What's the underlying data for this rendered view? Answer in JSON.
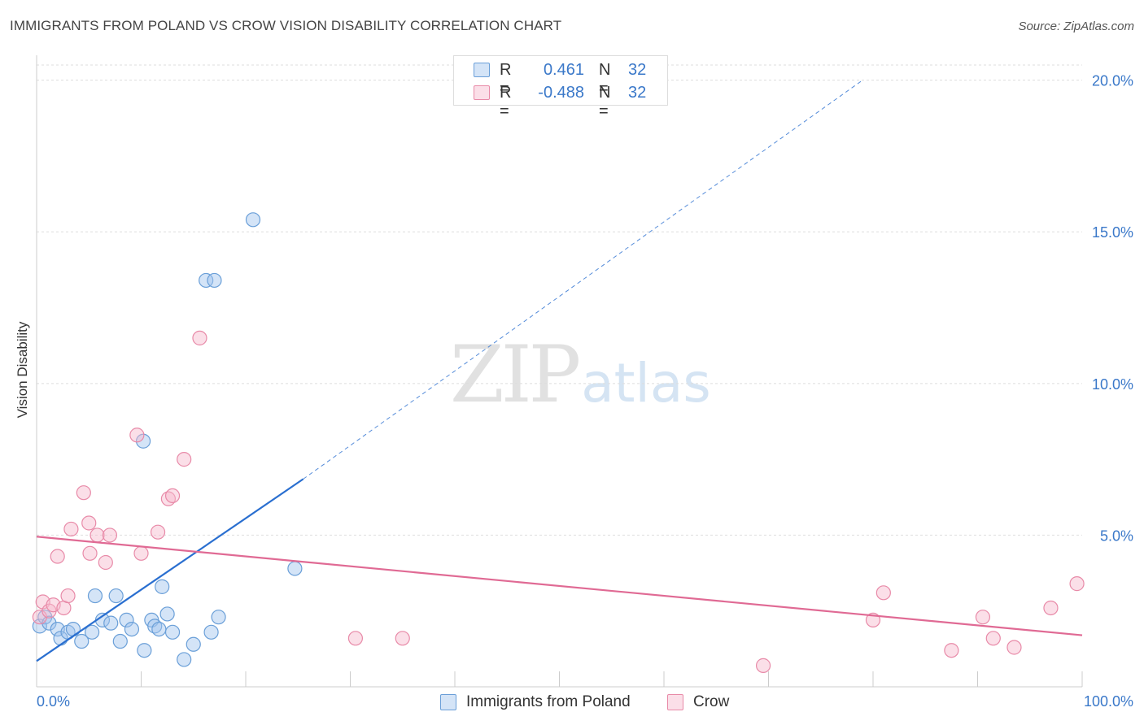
{
  "title": "IMMIGRANTS FROM POLAND VS CROW VISION DISABILITY CORRELATION CHART",
  "source": "Source: ZipAtlas.com",
  "watermark": {
    "part1": "ZIP",
    "part2": "atlas"
  },
  "colors": {
    "blue": "#6a9fd8",
    "blue_fill": "rgba(160,196,238,0.45)",
    "blue_line": "#2a6fd0",
    "pink": "#e88aa8",
    "pink_fill": "rgba(246,184,204,0.45)",
    "pink_line": "#e06a94",
    "tick_label": "#3a78c9",
    "grid": "#dddddd"
  },
  "legend_top": [
    {
      "r_label": "R =",
      "r_value": "0.461",
      "n_label": "N =",
      "n_value": "32"
    },
    {
      "r_label": "R =",
      "r_value": "-0.488",
      "n_label": "N =",
      "n_value": "32"
    }
  ],
  "legend_bottom": [
    "Immigrants from Poland",
    "Crow"
  ],
  "chart_data": {
    "type": "scatter",
    "title": "IMMIGRANTS FROM POLAND VS CROW VISION DISABILITY CORRELATION CHART",
    "xlabel": "",
    "ylabel": "Vision Disability",
    "xlim": [
      0,
      100
    ],
    "ylim": [
      0,
      20.5
    ],
    "x_tick_labels": [
      "0.0%",
      "100.0%"
    ],
    "y_ticks": [
      5,
      10,
      15,
      20
    ],
    "y_tick_labels": [
      "5.0%",
      "10.0%",
      "15.0%",
      "20.0%"
    ],
    "grid": true,
    "series": [
      {
        "name": "Immigrants from Poland",
        "x": [
          0.3,
          0.8,
          1.2,
          2.0,
          2.3,
          3.0,
          3.5,
          4.3,
          5.3,
          5.6,
          6.3,
          7.1,
          7.6,
          8.0,
          8.6,
          9.1,
          10.2,
          10.3,
          11.0,
          11.3,
          11.7,
          12.0,
          12.5,
          13.0,
          14.1,
          15.0,
          16.2,
          16.7,
          17.0,
          17.4,
          20.7,
          24.7
        ],
        "y": [
          2.0,
          2.3,
          2.1,
          1.9,
          1.6,
          1.8,
          1.9,
          1.5,
          1.8,
          3.0,
          2.2,
          2.1,
          3.0,
          1.5,
          2.2,
          1.9,
          8.1,
          1.2,
          2.2,
          2.0,
          1.9,
          3.3,
          2.4,
          1.8,
          0.9,
          1.4,
          13.4,
          1.8,
          13.4,
          2.3,
          15.4,
          3.9
        ],
        "trendline": {
          "x": [
            0,
            25.5
          ],
          "y": [
            0.85,
            6.85
          ],
          "extended_to": [
            79,
            20.0
          ]
        }
      },
      {
        "name": "Crow",
        "x": [
          0.3,
          0.6,
          1.2,
          1.6,
          2.0,
          2.6,
          3.0,
          3.3,
          4.5,
          5.0,
          5.1,
          5.8,
          6.6,
          7.0,
          9.6,
          10.0,
          11.6,
          12.6,
          13.0,
          14.1,
          15.6,
          30.5,
          35.0,
          69.5,
          80.0,
          81.0,
          87.5,
          90.5,
          91.5,
          93.5,
          97.0,
          99.5
        ],
        "y": [
          2.3,
          2.8,
          2.5,
          2.7,
          4.3,
          2.6,
          3.0,
          5.2,
          6.4,
          5.4,
          4.4,
          5.0,
          4.1,
          5.0,
          8.3,
          4.4,
          5.1,
          6.2,
          6.3,
          7.5,
          11.5,
          1.6,
          1.6,
          0.7,
          2.2,
          3.1,
          1.2,
          2.3,
          1.6,
          1.3,
          2.6,
          3.4
        ],
        "trendline": {
          "x": [
            0,
            100
          ],
          "y": [
            4.95,
            1.7
          ]
        }
      }
    ]
  }
}
